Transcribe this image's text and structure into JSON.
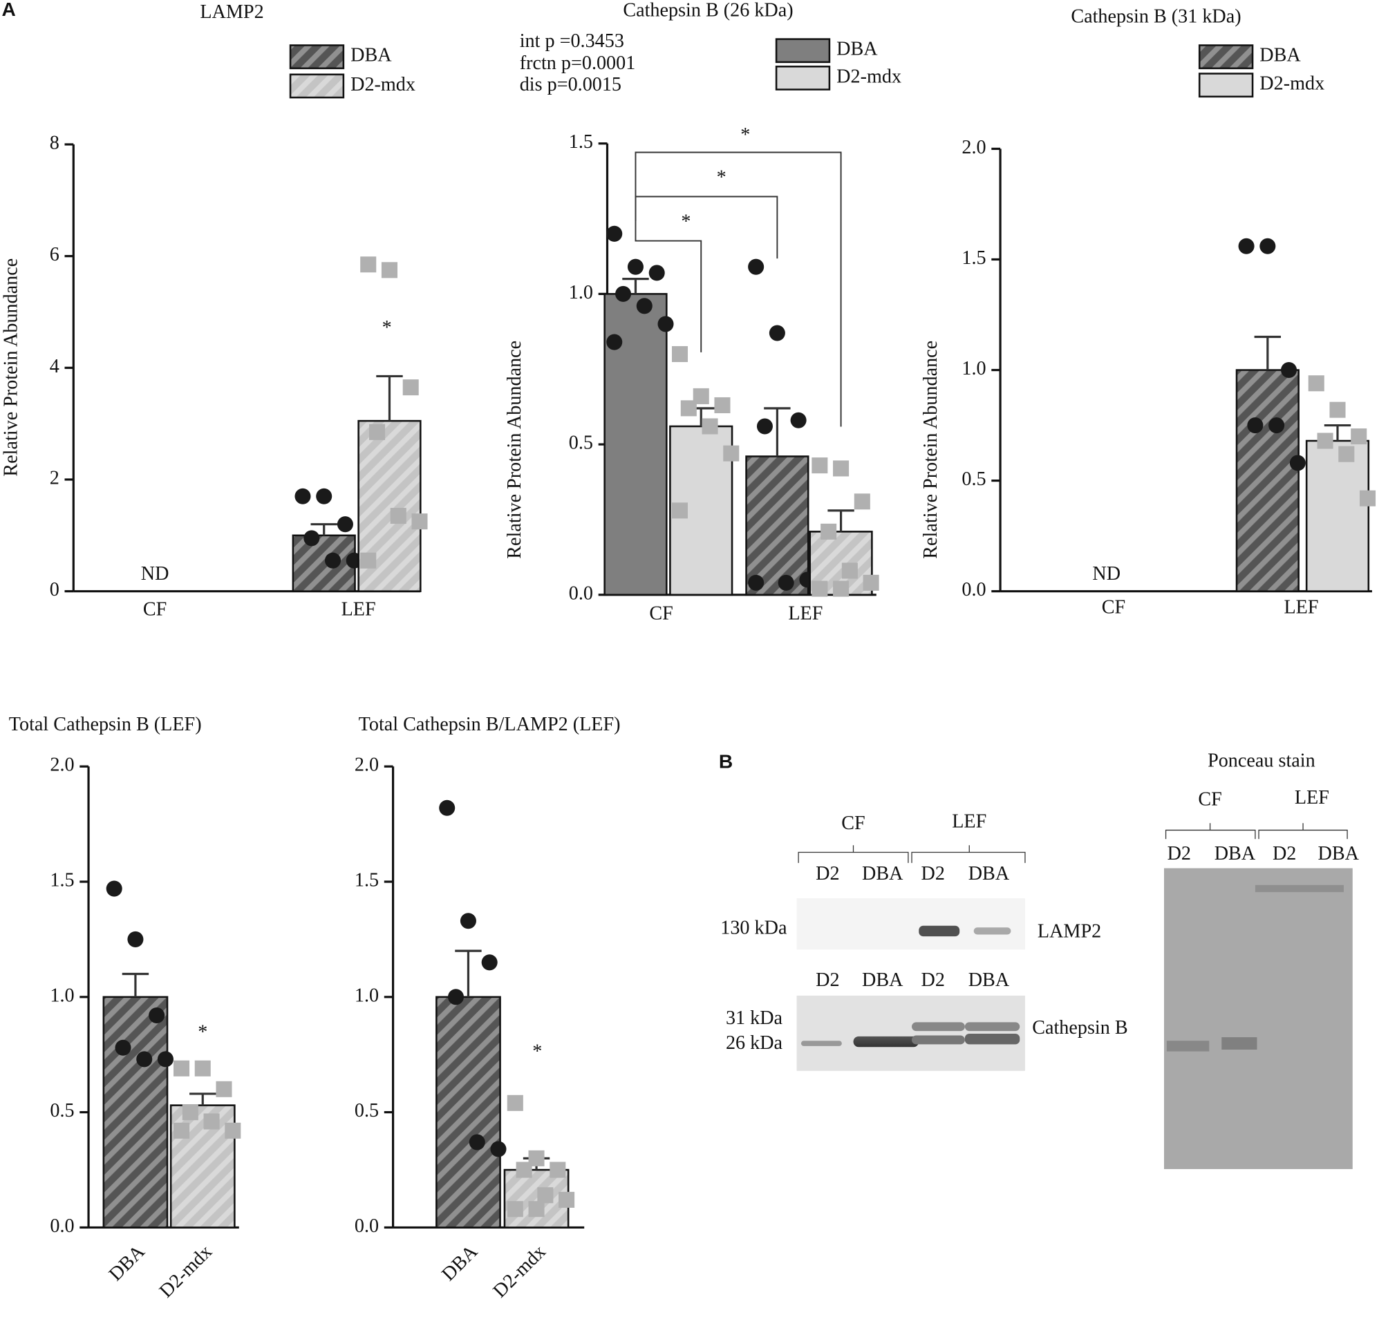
{
  "panel_a": "A",
  "chart_data": [
    {
      "type": "bar",
      "title": "LAMP2",
      "ylabel": "Relative Protein Abundance",
      "categories": [
        "CF",
        "LEF"
      ],
      "series": [
        {
          "name": "DBA",
          "color": "#555555",
          "hatch": true,
          "marker": "circle",
          "marker_color": "#1a1a1a",
          "values": [
            null,
            1.0
          ],
          "errors": [
            null,
            0.2
          ],
          "points": [
            null,
            [
              1.7,
              1.7,
              1.2,
              0.95,
              0.55,
              0.55
            ]
          ]
        },
        {
          "name": "D2-mdx",
          "color": "#c4c4c4",
          "hatch": true,
          "marker": "square",
          "marker_color": "#b0b0b0",
          "values": [
            null,
            3.05
          ],
          "errors": [
            null,
            0.8
          ],
          "points": [
            null,
            [
              5.85,
              5.75,
              3.65,
              2.85,
              1.35,
              1.25,
              0.55
            ]
          ]
        }
      ],
      "ylim": [
        0,
        8
      ],
      "yticks": [
        0,
        2,
        4,
        6,
        8
      ],
      "annotations": [
        "ND",
        "*"
      ]
    },
    {
      "type": "bar",
      "title": "Cathepsin B (26 kDa)",
      "ylabel": "Relative Protein Abundance",
      "categories": [
        "CF",
        "LEF"
      ],
      "stats": [
        "int p =0.3453",
        "frctn p=0.0001",
        "dis p=0.0015"
      ],
      "series": [
        {
          "name": "DBA",
          "color": [
            "#7f7f7f",
            "#555555"
          ],
          "hatch": [
            false,
            true
          ],
          "marker": "circle",
          "marker_color": "#1a1a1a",
          "values": [
            1.0,
            0.46
          ],
          "errors": [
            0.05,
            0.16
          ],
          "points": [
            [
              1.2,
              1.09,
              1.07,
              1.0,
              0.96,
              0.9,
              0.84
            ],
            [
              1.09,
              0.87,
              0.58,
              0.56,
              0.04,
              0.05,
              0.04
            ]
          ]
        },
        {
          "name": "D2-mdx",
          "color": [
            "#d9d9d9",
            "#c4c4c4"
          ],
          "hatch": [
            false,
            true
          ],
          "marker": "square",
          "marker_color": "#b0b0b0",
          "values": [
            0.56,
            0.21
          ],
          "errors": [
            0.06,
            0.07
          ],
          "points": [
            [
              0.8,
              0.66,
              0.63,
              0.62,
              0.56,
              0.47,
              0.28
            ],
            [
              0.43,
              0.42,
              0.31,
              0.21,
              0.08,
              0.04,
              0.02,
              0.02
            ]
          ]
        }
      ],
      "ylim": [
        0,
        1.5
      ],
      "yticks": [
        {
          "value": 0,
          "label": "0.0"
        },
        0.5,
        {
          "value": 1,
          "label": "1.0"
        },
        1.5
      ],
      "annotations": [
        "*",
        "*",
        "*"
      ]
    },
    {
      "type": "bar",
      "title": "Cathepsin B (31 kDa)",
      "ylabel": "Relative Protein Abundance",
      "categories": [
        "CF",
        "LEF"
      ],
      "series": [
        {
          "name": "DBA",
          "color": "#555555",
          "hatch": true,
          "marker": "circle",
          "marker_color": "#1a1a1a",
          "values": [
            null,
            1.0
          ],
          "errors": [
            null,
            0.15
          ],
          "points": [
            null,
            [
              1.56,
              1.56,
              1.0,
              0.75,
              0.75,
              0.58
            ]
          ]
        },
        {
          "name": "D2-mdx",
          "color": "#d9d9d9",
          "hatch": false,
          "marker": "square",
          "marker_color": "#b0b0b0",
          "values": [
            null,
            0.68
          ],
          "errors": [
            null,
            0.07
          ],
          "points": [
            null,
            [
              0.94,
              0.82,
              0.7,
              0.68,
              0.62,
              0.42
            ]
          ]
        }
      ],
      "ylim": [
        0,
        2
      ],
      "yticks": [
        {
          "value": 0,
          "label": "0.0"
        },
        0.5,
        {
          "value": 1,
          "label": "1.0"
        },
        1.5,
        {
          "value": 2,
          "label": "2.0"
        }
      ],
      "annotations": [
        "ND"
      ]
    },
    {
      "type": "bar",
      "title": "Total Cathepsin B (LEF)",
      "categories": [
        "DBA",
        "D2-mdx"
      ],
      "values": [
        1.0,
        0.53
      ],
      "errors": [
        0.1,
        0.05
      ],
      "color": [
        "#555555",
        "#c4c4c4"
      ],
      "hatch": [
        true,
        true
      ],
      "marker": [
        "circle",
        "square"
      ],
      "marker_color": [
        "#1a1a1a",
        "#b0b0b0"
      ],
      "points": [
        [
          1.47,
          1.25,
          0.92,
          0.78,
          0.73,
          0.73
        ],
        [
          0.69,
          0.69,
          0.6,
          0.5,
          0.46,
          0.42,
          0.42
        ]
      ],
      "ylim": [
        0,
        2
      ],
      "yticks": [
        {
          "value": 0,
          "label": "0.0"
        },
        0.5,
        {
          "value": 1,
          "label": "1.0"
        },
        1.5,
        {
          "value": 2,
          "label": "2.0"
        }
      ],
      "annotations": [
        "*"
      ]
    },
    {
      "type": "bar",
      "title": "Total Cathepsin B/LAMP2 (LEF)",
      "categories": [
        "DBA",
        "D2-mdx"
      ],
      "values": [
        1.0,
        0.25
      ],
      "errors": [
        0.2,
        0.05
      ],
      "color": [
        "#555555",
        "#c4c4c4"
      ],
      "hatch": [
        true,
        true
      ],
      "marker": [
        "circle",
        "square"
      ],
      "marker_color": [
        "#1a1a1a",
        "#b0b0b0"
      ],
      "points": [
        [
          1.82,
          1.33,
          1.15,
          1.0,
          0.37,
          0.34
        ],
        [
          0.54,
          0.3,
          0.25,
          0.25,
          0.14,
          0.12,
          0.08,
          0.08
        ]
      ],
      "ylim": [
        0,
        2
      ],
      "yticks": [
        {
          "value": 0,
          "label": "0.0"
        },
        0.5,
        {
          "value": 1,
          "label": "1.0"
        },
        1.5,
        {
          "value": 2,
          "label": "2.0"
        }
      ],
      "annotations": [
        "*"
      ]
    }
  ],
  "blot": {
    "panel": "B",
    "groups": [
      "CF",
      "LEF"
    ],
    "lanes_top": [
      "D2",
      "DBA",
      "D2",
      "DBA"
    ],
    "lamp2_marker": "130 kDa",
    "lamp2_label": "LAMP2",
    "lanes_mid": [
      "D2",
      "DBA",
      "D2",
      "DBA"
    ],
    "cath_markers": [
      "31 kDa",
      "26 kDa"
    ],
    "cath_label": "Cathepsin B"
  },
  "ponceau": {
    "title": "Ponceau stain",
    "groups": [
      "CF",
      "LEF"
    ],
    "lanes": [
      "D2",
      "DBA",
      "D2",
      "DBA"
    ]
  }
}
